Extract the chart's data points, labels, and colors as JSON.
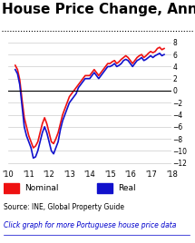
{
  "title": "House Price Change, Annual (%)",
  "title_fontsize": 11,
  "source_text": "Source: INE, Global Property Guide",
  "click_text": "Click graph for more Portuguese house price data",
  "ylim": [
    -13,
    9
  ],
  "yticks": [
    -12,
    -10,
    -8,
    -6,
    -4,
    -2,
    0,
    2,
    4,
    6,
    8
  ],
  "xtick_labels": [
    "'10",
    "'11",
    "'12",
    "'13",
    "'14",
    "'15",
    "'16",
    "'17",
    "'18"
  ],
  "nominal_color": "#ee1111",
  "real_color": "#1111cc",
  "background_color": "#ffffff",
  "nominal": [
    4.2,
    3.5,
    1.8,
    -1.5,
    -4.5,
    -6.0,
    -7.5,
    -8.5,
    -9.5,
    -9.2,
    -8.5,
    -7.0,
    -5.5,
    -4.5,
    -5.5,
    -7.0,
    -8.5,
    -8.8,
    -8.0,
    -7.0,
    -5.5,
    -4.0,
    -3.0,
    -2.0,
    -1.0,
    -0.5,
    0.0,
    0.5,
    1.0,
    1.5,
    2.0,
    2.5,
    2.5,
    2.5,
    3.0,
    3.5,
    3.0,
    2.5,
    3.0,
    3.5,
    4.0,
    4.5,
    4.5,
    4.8,
    5.0,
    4.5,
    4.8,
    5.2,
    5.5,
    5.8,
    5.5,
    5.0,
    4.5,
    5.0,
    5.5,
    5.8,
    6.0,
    5.5,
    5.8,
    6.2,
    6.5,
    6.3,
    6.5,
    7.0,
    7.2,
    6.8,
    7.0
  ],
  "real": [
    3.5,
    2.8,
    1.0,
    -2.5,
    -6.0,
    -7.5,
    -8.5,
    -9.5,
    -11.2,
    -11.0,
    -10.0,
    -8.5,
    -7.0,
    -6.0,
    -7.0,
    -8.5,
    -10.0,
    -10.5,
    -9.5,
    -8.5,
    -6.5,
    -5.0,
    -4.0,
    -3.0,
    -2.0,
    -1.5,
    -1.0,
    -0.5,
    0.5,
    1.0,
    1.5,
    2.0,
    2.0,
    2.0,
    2.5,
    3.0,
    2.5,
    2.0,
    2.5,
    3.0,
    3.5,
    4.0,
    4.0,
    4.2,
    4.5,
    4.0,
    4.2,
    4.5,
    5.0,
    5.2,
    5.0,
    4.5,
    4.0,
    4.5,
    5.0,
    5.2,
    5.5,
    5.0,
    5.2,
    5.5,
    5.8,
    5.5,
    5.8,
    6.0,
    6.2,
    5.8,
    6.0
  ]
}
